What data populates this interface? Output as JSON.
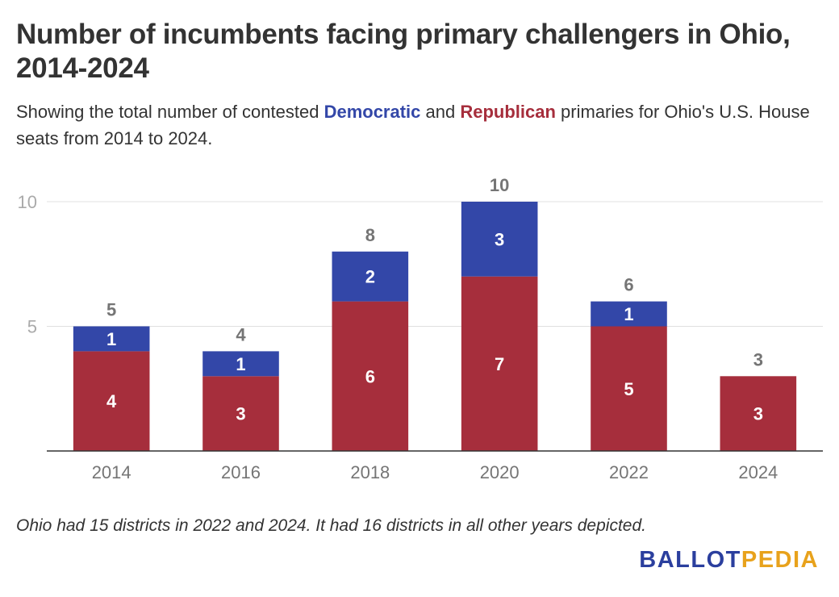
{
  "title": "Number of incumbents facing primary challengers in Ohio, 2014-2024",
  "subtitle": {
    "part1": "Showing the total number of contested ",
    "dem": "Democratic",
    "part2": " and ",
    "rep": "Republican",
    "part3": " primaries for Ohio's U.S. House seats from 2014 to 2024."
  },
  "note": "Ohio had 15 districts in 2022 and 2024. It had 16 districts in all other years depicted.",
  "logo": {
    "part1": "BALLOT",
    "part2": "PEDIA"
  },
  "colors": {
    "democratic": "#3347a8",
    "republican": "#a62e3c",
    "total_label": "#757575",
    "axis_text": "#757575",
    "ytick_text": "#aaaaaa",
    "grid": "#e0e0e0",
    "baseline": "#333333"
  },
  "chart_data": {
    "type": "bar",
    "stacked": true,
    "categories": [
      "2014",
      "2016",
      "2018",
      "2020",
      "2022",
      "2024"
    ],
    "series": [
      {
        "name": "Republican",
        "values": [
          4,
          3,
          6,
          7,
          5,
          3
        ]
      },
      {
        "name": "Democratic",
        "values": [
          1,
          1,
          2,
          3,
          1,
          0
        ]
      }
    ],
    "totals": [
      5,
      4,
      8,
      10,
      6,
      3
    ],
    "ylim": [
      0,
      10
    ],
    "yticks": [
      "5",
      "10"
    ],
    "grid": true,
    "legend": "none"
  }
}
